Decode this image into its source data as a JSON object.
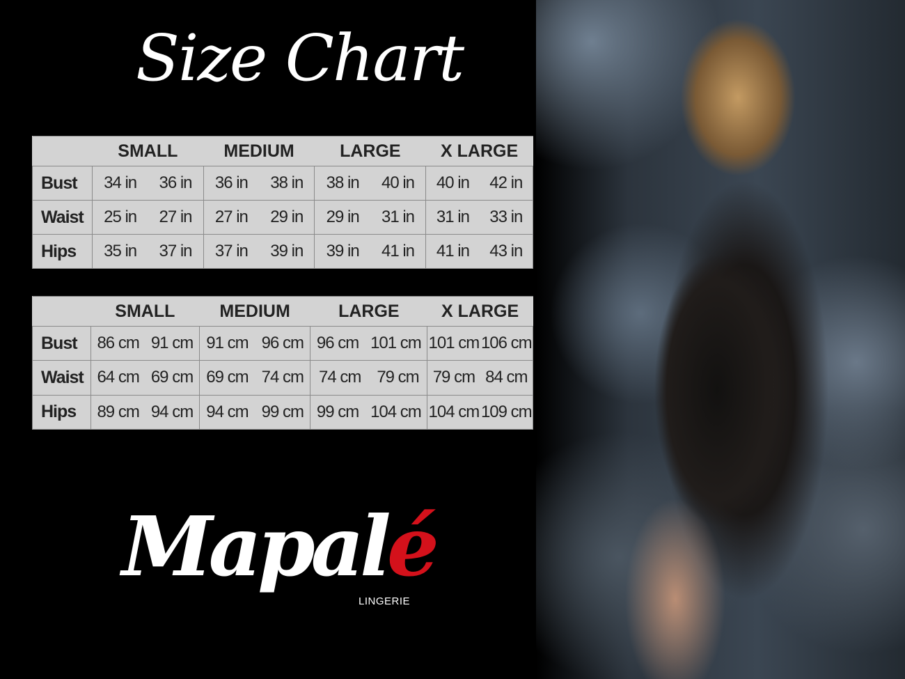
{
  "title": "Size Chart",
  "sizes": [
    "SMALL",
    "MEDIUM",
    "LARGE",
    "X LARGE"
  ],
  "inches_table": {
    "rows": [
      {
        "label": "Bust",
        "values": [
          "34 in",
          "36 in",
          "36 in",
          "38 in",
          "38 in",
          "40 in",
          "40 in",
          "42 in"
        ]
      },
      {
        "label": "Waist",
        "values": [
          "25 in",
          "27 in",
          "27 in",
          "29 in",
          "29 in",
          "31 in",
          "31 in",
          "33 in"
        ]
      },
      {
        "label": "Hips",
        "values": [
          "35 in",
          "37 in",
          "37 in",
          "39 in",
          "39 in",
          "41 in",
          "41 in",
          "43 in"
        ]
      }
    ]
  },
  "cm_table": {
    "rows": [
      {
        "label": "Bust",
        "values": [
          "86 cm",
          "91 cm",
          "91 cm",
          "96 cm",
          "96 cm",
          "101 cm",
          "101 cm",
          "106 cm"
        ]
      },
      {
        "label": "Waist",
        "values": [
          "64 cm",
          "69 cm",
          "69 cm",
          "74 cm",
          "74 cm",
          "79  cm",
          "79 cm",
          "84 cm"
        ]
      },
      {
        "label": "Hips",
        "values": [
          "89 cm",
          "94 cm",
          "94 cm",
          "99 cm",
          "99 cm",
          "104 cm",
          "104 cm",
          "109 cm"
        ]
      }
    ]
  },
  "logo": {
    "text_main": "Mapal",
    "text_accent": "é",
    "subtitle": "LINGERIE",
    "accent_color": "#d4111b"
  },
  "colors": {
    "background": "#000000",
    "table_bg": "#d3d3d3",
    "table_text": "#222222"
  }
}
